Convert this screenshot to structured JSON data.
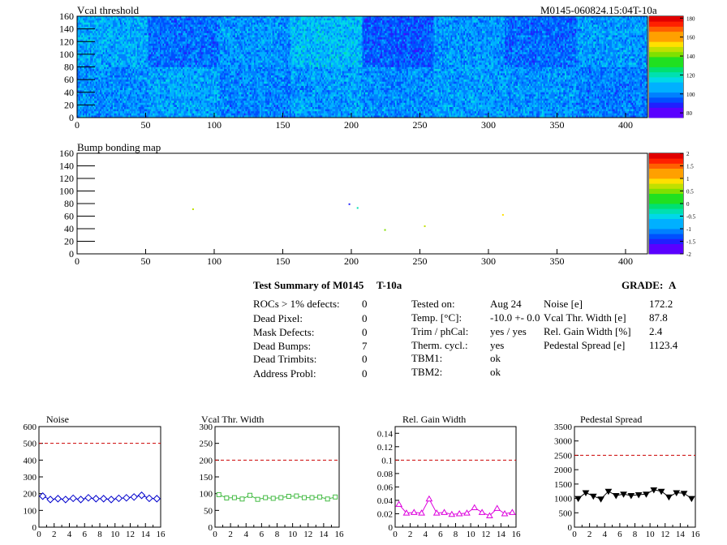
{
  "header": {
    "title_left": "Vcal threshold",
    "title_right": "M0145-060824.15:04T-10a"
  },
  "chart_data": [
    {
      "type": "heatmap",
      "title": "Vcal threshold",
      "x_ticks": [
        0,
        50,
        100,
        150,
        200,
        250,
        300,
        350,
        400
      ],
      "y_ticks": [
        0,
        20,
        40,
        60,
        80,
        100,
        120,
        140,
        160
      ],
      "xlim": [
        0,
        416
      ],
      "ylim": [
        0,
        160
      ],
      "color_scale": {
        "min": 75,
        "max": 182,
        "ticks": [
          80,
          100,
          120,
          140,
          160,
          180
        ]
      },
      "roc_block_means": {
        "top": [
          104,
          96,
          101,
          107,
          93,
          101,
          95,
          102
        ],
        "bottom": [
          100,
          103,
          99,
          102,
          100,
          102,
          101,
          98
        ]
      }
    },
    {
      "type": "heatmap",
      "title": "Bump bonding map",
      "x_ticks": [
        0,
        50,
        100,
        150,
        200,
        250,
        300,
        350,
        400
      ],
      "y_ticks": [
        0,
        20,
        40,
        60,
        80,
        100,
        120,
        140,
        160
      ],
      "xlim": [
        0,
        416
      ],
      "ylim": [
        0,
        160
      ],
      "color_scale": {
        "min": -2,
        "max": 2,
        "ticks": [
          "-2",
          "-1.5",
          "-1",
          "-0.5",
          "0",
          "0.5",
          "1",
          "1.5",
          "2"
        ]
      },
      "marked_pixels": [
        {
          "x": 84,
          "y": 71,
          "value": 0.6
        },
        {
          "x": 198,
          "y": 79,
          "value": -1.6
        },
        {
          "x": 204,
          "y": 73,
          "value": -0.3
        },
        {
          "x": 224,
          "y": 38,
          "value": 0.4
        },
        {
          "x": 253,
          "y": 44,
          "value": 0.5
        },
        {
          "x": 310,
          "y": 62,
          "value": 0.8
        }
      ]
    },
    {
      "type": "line",
      "title": "Noise",
      "x_ticks": [
        0,
        2,
        4,
        6,
        8,
        10,
        12,
        14,
        16
      ],
      "y_ticks": [
        "0",
        "100",
        "200",
        "300",
        "400",
        "500",
        "600"
      ],
      "xlim": [
        0,
        16
      ],
      "ylim": [
        0,
        600
      ],
      "limit_line": 500,
      "color": "#0000cc",
      "marker": "diamond",
      "x": [
        0.5,
        1.5,
        2.5,
        3.5,
        4.5,
        5.5,
        6.5,
        7.5,
        8.5,
        9.5,
        10.5,
        11.5,
        12.5,
        13.5,
        14.5,
        15.5
      ],
      "values": [
        185,
        165,
        170,
        165,
        172,
        165,
        175,
        170,
        170,
        165,
        172,
        175,
        180,
        190,
        172,
        170
      ]
    },
    {
      "type": "line",
      "title": "Vcal Thr. Width",
      "x_ticks": [
        0,
        2,
        4,
        6,
        8,
        10,
        12,
        14,
        16
      ],
      "y_ticks": [
        "0",
        "50",
        "100",
        "150",
        "200",
        "250",
        "300"
      ],
      "xlim": [
        0,
        16
      ],
      "ylim": [
        0,
        300
      ],
      "limit_line": 200,
      "color": "#44bb44",
      "marker": "square",
      "x": [
        0.5,
        1.5,
        2.5,
        3.5,
        4.5,
        5.5,
        6.5,
        7.5,
        8.5,
        9.5,
        10.5,
        11.5,
        12.5,
        13.5,
        14.5,
        15.5
      ],
      "values": [
        97,
        87,
        88,
        84,
        95,
        83,
        88,
        86,
        88,
        92,
        93,
        88,
        88,
        90,
        84,
        90
      ]
    },
    {
      "type": "line",
      "title": "Rel. Gain Width",
      "x_ticks": [
        0,
        2,
        4,
        6,
        8,
        10,
        12,
        14,
        16
      ],
      "y_ticks": [
        "0",
        "0.02",
        "0.04",
        "0.06",
        "0.08",
        "0.1",
        "0.12",
        "0.14"
      ],
      "xlim": [
        0,
        16
      ],
      "ylim": [
        0,
        0.15
      ],
      "limit_line": 0.1,
      "color": "#dd00dd",
      "marker": "triangle",
      "x": [
        0.5,
        1.5,
        2.5,
        3.5,
        4.5,
        5.5,
        6.5,
        7.5,
        8.5,
        9.5,
        10.5,
        11.5,
        12.5,
        13.5,
        14.5,
        15.5
      ],
      "values": [
        0.034,
        0.021,
        0.022,
        0.021,
        0.042,
        0.021,
        0.022,
        0.019,
        0.02,
        0.021,
        0.029,
        0.022,
        0.017,
        0.028,
        0.02,
        0.022
      ]
    },
    {
      "type": "line",
      "title": "Pedestal Spread",
      "x_ticks": [
        0,
        2,
        4,
        6,
        8,
        10,
        12,
        14,
        16
      ],
      "y_ticks": [
        "0",
        "500",
        "1000",
        "1500",
        "2000",
        "2500",
        "3000",
        "3500"
      ],
      "xlim": [
        0,
        16
      ],
      "ylim": [
        0,
        3500
      ],
      "limit_line": 2500,
      "color": "#000000",
      "marker": "triangle-down",
      "x": [
        0.5,
        1.5,
        2.5,
        3.5,
        4.5,
        5.5,
        6.5,
        7.5,
        8.5,
        9.5,
        10.5,
        11.5,
        12.5,
        13.5,
        14.5,
        15.5
      ],
      "values": [
        1000,
        1200,
        1080,
        980,
        1250,
        1100,
        1150,
        1100,
        1130,
        1150,
        1300,
        1250,
        1050,
        1200,
        1180,
        1000
      ]
    }
  ],
  "summary": {
    "title": "Test Summary of M0145",
    "tag": "T-10a",
    "grade_label": "GRADE:",
    "grade": "A",
    "defects": [
      {
        "label": "ROCs > 1% defects:",
        "value": "0"
      },
      {
        "label": "Dead Pixel:",
        "value": "0"
      },
      {
        "label": "Mask Defects:",
        "value": "0"
      },
      {
        "label": "Dead Bumps:",
        "value": "7"
      },
      {
        "label": "Dead Trimbits:",
        "value": "0"
      },
      {
        "label": "Address Probl:",
        "value": "0"
      }
    ],
    "conditions": [
      {
        "label": "Tested on:",
        "value": "Aug 24"
      },
      {
        "label": "Temp. [°C]:",
        "value": "-10.0 +- 0.0"
      },
      {
        "label": "Trim / phCal:",
        "value": "yes / yes"
      },
      {
        "label": "Therm. cycl.:",
        "value": "yes"
      },
      {
        "label": "TBM1:",
        "value": "ok"
      },
      {
        "label": "TBM2:",
        "value": "ok"
      }
    ],
    "results": [
      {
        "label": "Noise [e]",
        "value": "172.2"
      },
      {
        "label": "Vcal Thr. Width [e]",
        "value": "87.8"
      },
      {
        "label": "Rel. Gain Width [%]",
        "value": "2.4"
      },
      {
        "label": "Pedestal Spread [e]",
        "value": "1123.4"
      }
    ]
  }
}
